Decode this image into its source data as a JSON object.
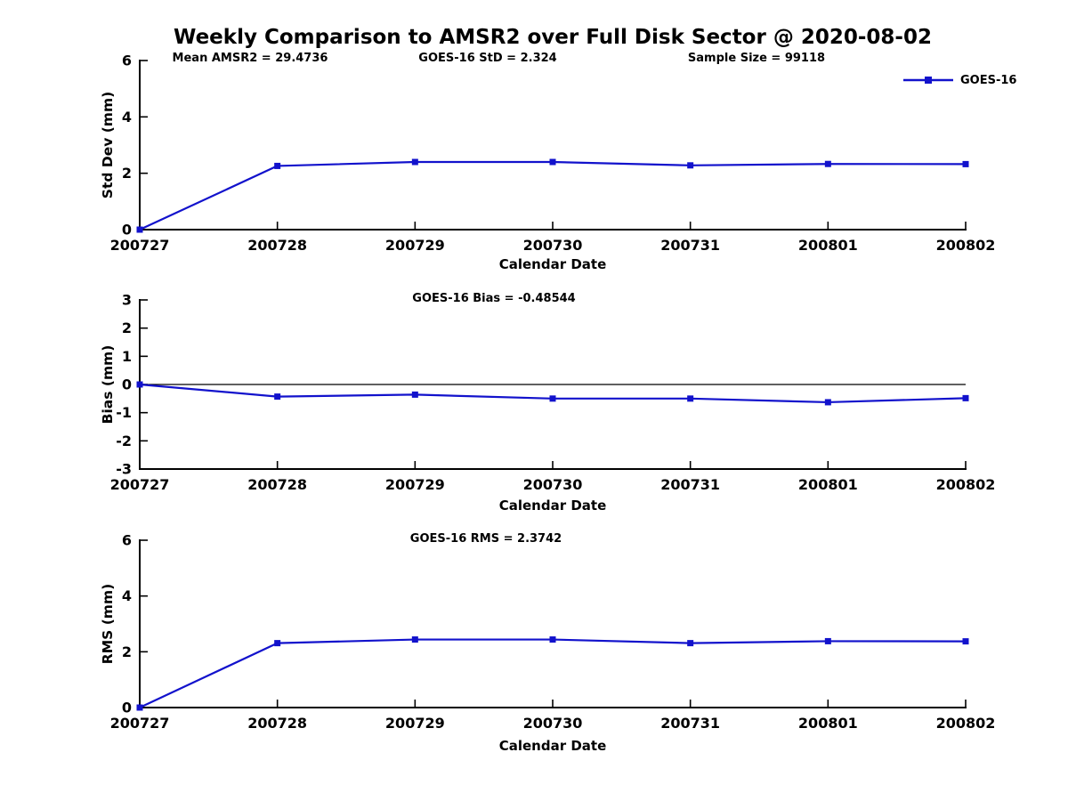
{
  "title": "Weekly Comparison to AMSR2 over Full Disk Sector @ 2020-08-02",
  "legend": {
    "label": "GOES-16"
  },
  "colors": {
    "line": "#1212cc",
    "axis": "#000000"
  },
  "chart_data": [
    {
      "type": "line",
      "name": "std-dev",
      "title": "",
      "ylabel": "Std Dev (mm)",
      "xlabel": "Calendar Date",
      "ylim": [
        0,
        6
      ],
      "yticks": [
        0,
        2,
        4,
        6
      ],
      "categories": [
        "200727",
        "200728",
        "200729",
        "200730",
        "200731",
        "200801",
        "200802"
      ],
      "series": [
        {
          "name": "GOES-16",
          "values": [
            0,
            2.26,
            2.4,
            2.4,
            2.28,
            2.33,
            2.324
          ]
        }
      ],
      "annotations": [
        "Mean AMSR2 = 29.4736",
        "GOES-16 StD = 2.324",
        "Sample Size = 99118"
      ],
      "grid": false,
      "zero_line": false,
      "legend_position": "top-right-outside"
    },
    {
      "type": "line",
      "name": "bias",
      "title": "",
      "ylabel": "Bias (mm)",
      "xlabel": "Calendar Date",
      "ylim": [
        -3,
        3
      ],
      "yticks": [
        -3,
        -2,
        -1,
        0,
        1,
        2,
        3
      ],
      "categories": [
        "200727",
        "200728",
        "200729",
        "200730",
        "200731",
        "200801",
        "200802"
      ],
      "series": [
        {
          "name": "GOES-16",
          "values": [
            0,
            -0.43,
            -0.36,
            -0.5,
            -0.5,
            -0.63,
            -0.48544
          ]
        }
      ],
      "annotations": [
        "GOES-16 Bias  = -0.48544"
      ],
      "grid": false,
      "zero_line": true,
      "legend_position": "none"
    },
    {
      "type": "line",
      "name": "rms",
      "title": "",
      "ylabel": "RMS (mm)",
      "xlabel": "Calendar Date",
      "ylim": [
        0,
        6
      ],
      "yticks": [
        0,
        2,
        4,
        6
      ],
      "categories": [
        "200727",
        "200728",
        "200729",
        "200730",
        "200731",
        "200801",
        "200802"
      ],
      "series": [
        {
          "name": "GOES-16",
          "values": [
            0,
            2.31,
            2.44,
            2.44,
            2.31,
            2.38,
            2.3742
          ]
        }
      ],
      "annotations": [
        "GOES-16 RMS = 2.3742"
      ],
      "grid": false,
      "zero_line": false,
      "legend_position": "none"
    }
  ]
}
